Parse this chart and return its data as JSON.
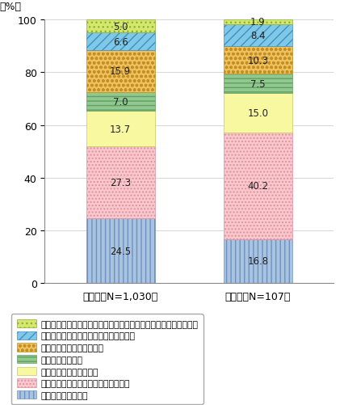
{
  "categories": [
    "個人　（N=1,030）",
    "企業　（N=107）"
  ],
  "segments": [
    {
      "label": "セキュリティの確保",
      "values": [
        24.5,
        16.8
      ],
      "facecolor": "#a8c4e0",
      "hatch": "|||",
      "edgecolor": "#7090c0"
    },
    {
      "label": "データの提供に関する適切な同意取得",
      "values": [
        27.3,
        40.2
      ],
      "facecolor": "#f8c8cc",
      "hatch": "....",
      "edgecolor": "#e090a0"
    },
    {
      "label": "適切なデータの取扱方法",
      "values": [
        13.7,
        15.0
      ],
      "facecolor": "#f8f8a0",
      "hatch": "",
      "edgecolor": "#c8c860"
    },
    {
      "label": "データの利用目的",
      "values": [
        7.0,
        7.5
      ],
      "facecolor": "#90c890",
      "hatch": "---",
      "edgecolor": "#60a060"
    },
    {
      "label": "データの種類、項目の明示",
      "values": [
        15.9,
        10.3
      ],
      "facecolor": "#f0c060",
      "hatch": "ooo",
      "edgecolor": "#c09020"
    },
    {
      "label": "データを取り扱う組織・企業の概要説明",
      "values": [
        6.6,
        8.4
      ],
      "facecolor": "#80c8e8",
      "hatch": "///",
      "edgecolor": "#4090c0"
    },
    {
      "label": "データ提供に対するインセンティブ付与（サービス等のメリット）",
      "values": [
        5.0,
        1.9
      ],
      "facecolor": "#d4e870",
      "hatch": "...",
      "edgecolor": "#90b030"
    }
  ],
  "ylim": [
    0,
    100
  ],
  "yticks": [
    0,
    20,
    40,
    60,
    80,
    100
  ],
  "ylabel": "（%）",
  "figsize": [
    4.26,
    5.02
  ],
  "dpi": 100,
  "bar_width": 0.5,
  "label_fontsize": 8.5,
  "tick_fontsize": 9,
  "legend_fontsize": 7.8
}
